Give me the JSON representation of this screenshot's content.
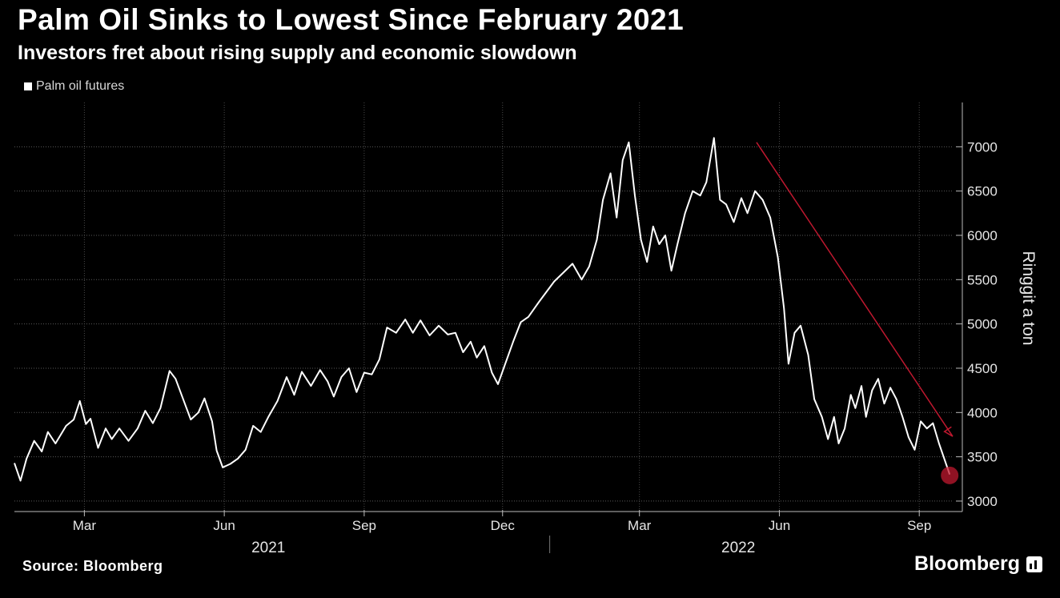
{
  "chart_data": {
    "type": "line",
    "title": "Palm Oil Sinks to Lowest Since February 2021",
    "subtitle": "Investors fret about rising supply and economic slowdown",
    "ylabel": "Ringgit a ton",
    "ylim": [
      2900,
      7500
    ],
    "yticks": [
      3000,
      3500,
      4000,
      4500,
      5000,
      5500,
      6000,
      6500,
      7000
    ],
    "x_tick_labels": [
      "Mar",
      "Jun",
      "Sep",
      "Dec",
      "Mar",
      "Jun",
      "Sep"
    ],
    "x_tick_dates": [
      "2021-03-01",
      "2021-06-01",
      "2021-09-01",
      "2021-12-01",
      "2022-03-01",
      "2022-06-01",
      "2022-09-01"
    ],
    "year_labels": [
      {
        "label": "2021",
        "at": "2021-06-30"
      },
      {
        "label": "2022",
        "at": "2022-05-05"
      }
    ],
    "year_divider": "2022-01-01",
    "xlim": [
      "2021-01-14",
      "2022-09-23"
    ],
    "grid": true,
    "legend_position": "top-left",
    "series": [
      {
        "name": "Palm oil futures",
        "color": "#ffffff",
        "points": [
          [
            "2021-01-14",
            3430
          ],
          [
            "2021-01-18",
            3230
          ],
          [
            "2021-01-22",
            3480
          ],
          [
            "2021-01-27",
            3680
          ],
          [
            "2021-02-01",
            3560
          ],
          [
            "2021-02-05",
            3780
          ],
          [
            "2021-02-10",
            3650
          ],
          [
            "2021-02-17",
            3850
          ],
          [
            "2021-02-22",
            3920
          ],
          [
            "2021-02-26",
            4130
          ],
          [
            "2021-03-02",
            3870
          ],
          [
            "2021-03-05",
            3930
          ],
          [
            "2021-03-10",
            3600
          ],
          [
            "2021-03-15",
            3820
          ],
          [
            "2021-03-19",
            3700
          ],
          [
            "2021-03-24",
            3820
          ],
          [
            "2021-03-30",
            3680
          ],
          [
            "2021-04-05",
            3820
          ],
          [
            "2021-04-10",
            4020
          ],
          [
            "2021-04-15",
            3880
          ],
          [
            "2021-04-20",
            4050
          ],
          [
            "2021-04-26",
            4470
          ],
          [
            "2021-04-30",
            4380
          ],
          [
            "2021-05-05",
            4150
          ],
          [
            "2021-05-10",
            3920
          ],
          [
            "2021-05-15",
            4000
          ],
          [
            "2021-05-19",
            4160
          ],
          [
            "2021-05-24",
            3900
          ],
          [
            "2021-05-27",
            3570
          ],
          [
            "2021-05-31",
            3380
          ],
          [
            "2021-06-05",
            3420
          ],
          [
            "2021-06-10",
            3480
          ],
          [
            "2021-06-15",
            3580
          ],
          [
            "2021-06-20",
            3850
          ],
          [
            "2021-06-25",
            3780
          ],
          [
            "2021-06-30",
            3950
          ],
          [
            "2021-07-06",
            4130
          ],
          [
            "2021-07-12",
            4400
          ],
          [
            "2021-07-17",
            4200
          ],
          [
            "2021-07-22",
            4460
          ],
          [
            "2021-07-28",
            4300
          ],
          [
            "2021-08-03",
            4480
          ],
          [
            "2021-08-08",
            4350
          ],
          [
            "2021-08-12",
            4180
          ],
          [
            "2021-08-17",
            4400
          ],
          [
            "2021-08-22",
            4500
          ],
          [
            "2021-08-27",
            4230
          ],
          [
            "2021-09-01",
            4450
          ],
          [
            "2021-09-06",
            4430
          ],
          [
            "2021-09-11",
            4600
          ],
          [
            "2021-09-16",
            4960
          ],
          [
            "2021-09-22",
            4900
          ],
          [
            "2021-09-28",
            5050
          ],
          [
            "2021-10-03",
            4900
          ],
          [
            "2021-10-08",
            5040
          ],
          [
            "2021-10-14",
            4870
          ],
          [
            "2021-10-20",
            4980
          ],
          [
            "2021-10-26",
            4880
          ],
          [
            "2021-10-31",
            4900
          ],
          [
            "2021-11-05",
            4680
          ],
          [
            "2021-11-10",
            4800
          ],
          [
            "2021-11-14",
            4620
          ],
          [
            "2021-11-19",
            4750
          ],
          [
            "2021-11-24",
            4450
          ],
          [
            "2021-11-28",
            4320
          ],
          [
            "2021-12-03",
            4560
          ],
          [
            "2021-12-08",
            4800
          ],
          [
            "2021-12-13",
            5020
          ],
          [
            "2021-12-18",
            5080
          ],
          [
            "2021-12-25",
            5250
          ],
          [
            "2022-01-04",
            5480
          ],
          [
            "2022-01-10",
            5580
          ],
          [
            "2022-01-16",
            5680
          ],
          [
            "2022-01-22",
            5500
          ],
          [
            "2022-01-27",
            5650
          ],
          [
            "2022-02-01",
            5950
          ],
          [
            "2022-02-05",
            6400
          ],
          [
            "2022-02-10",
            6700
          ],
          [
            "2022-02-14",
            6200
          ],
          [
            "2022-02-18",
            6850
          ],
          [
            "2022-02-22",
            7050
          ],
          [
            "2022-02-26",
            6450
          ],
          [
            "2022-03-02",
            5950
          ],
          [
            "2022-03-06",
            5700
          ],
          [
            "2022-03-10",
            6100
          ],
          [
            "2022-03-14",
            5900
          ],
          [
            "2022-03-18",
            6000
          ],
          [
            "2022-03-22",
            5600
          ],
          [
            "2022-03-26",
            5900
          ],
          [
            "2022-03-31",
            6250
          ],
          [
            "2022-04-05",
            6500
          ],
          [
            "2022-04-10",
            6450
          ],
          [
            "2022-04-14",
            6600
          ],
          [
            "2022-04-19",
            7100
          ],
          [
            "2022-04-23",
            6400
          ],
          [
            "2022-04-27",
            6350
          ],
          [
            "2022-05-02",
            6150
          ],
          [
            "2022-05-07",
            6420
          ],
          [
            "2022-05-11",
            6250
          ],
          [
            "2022-05-16",
            6500
          ],
          [
            "2022-05-21",
            6400
          ],
          [
            "2022-05-26",
            6200
          ],
          [
            "2022-05-31",
            5750
          ],
          [
            "2022-06-04",
            5180
          ],
          [
            "2022-06-07",
            4550
          ],
          [
            "2022-06-11",
            4900
          ],
          [
            "2022-06-15",
            4980
          ],
          [
            "2022-06-20",
            4650
          ],
          [
            "2022-06-24",
            4150
          ],
          [
            "2022-06-29",
            3950
          ],
          [
            "2022-07-03",
            3700
          ],
          [
            "2022-07-07",
            3950
          ],
          [
            "2022-07-10",
            3650
          ],
          [
            "2022-07-14",
            3820
          ],
          [
            "2022-07-18",
            4200
          ],
          [
            "2022-07-21",
            4050
          ],
          [
            "2022-07-25",
            4300
          ],
          [
            "2022-07-28",
            3950
          ],
          [
            "2022-08-01",
            4250
          ],
          [
            "2022-08-05",
            4380
          ],
          [
            "2022-08-09",
            4100
          ],
          [
            "2022-08-13",
            4280
          ],
          [
            "2022-08-17",
            4150
          ],
          [
            "2022-08-21",
            3950
          ],
          [
            "2022-08-25",
            3720
          ],
          [
            "2022-08-29",
            3580
          ],
          [
            "2022-09-02",
            3900
          ],
          [
            "2022-09-06",
            3820
          ],
          [
            "2022-09-10",
            3880
          ],
          [
            "2022-09-14",
            3650
          ],
          [
            "2022-09-18",
            3450
          ],
          [
            "2022-09-21",
            3300
          ]
        ]
      }
    ],
    "annotations": [
      {
        "type": "arrow",
        "color": "#c0182f",
        "from": [
          "2022-05-17",
          7050
        ],
        "to": [
          "2022-09-23",
          3730
        ]
      },
      {
        "type": "circle",
        "color": "#c0182f",
        "at": [
          "2022-09-21",
          3290
        ]
      }
    ]
  },
  "footer": {
    "source": "Source: Bloomberg",
    "brand": "Bloomberg"
  }
}
